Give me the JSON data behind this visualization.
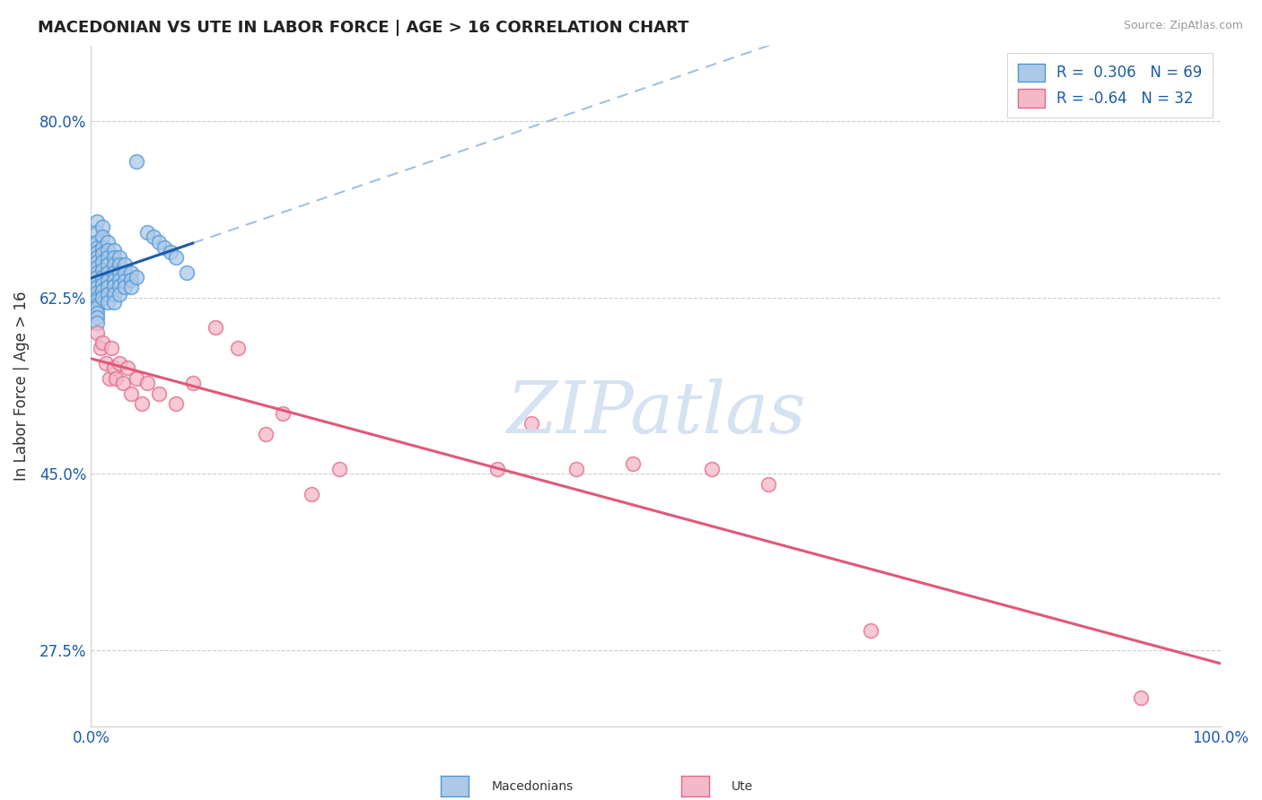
{
  "title": "MACEDONIAN VS UTE IN LABOR FORCE | AGE > 16 CORRELATION CHART",
  "source_text": "Source: ZipAtlas.com",
  "ylabel": "In Labor Force | Age > 16",
  "xlim": [
    0.0,
    1.0
  ],
  "ylim": [
    0.2,
    0.875
  ],
  "y_ticks": [
    0.275,
    0.45,
    0.625,
    0.8
  ],
  "y_tick_labels": [
    "27.5%",
    "45.0%",
    "62.5%",
    "80.0%"
  ],
  "macedonian_R": 0.306,
  "macedonian_N": 69,
  "ute_R": -0.64,
  "ute_N": 32,
  "macedonian_color": "#adc9e8",
  "macedonian_edge_color": "#4e96d4",
  "ute_color": "#f5b8c8",
  "ute_edge_color": "#e06888",
  "trend_macedonian_color": "#1a5ca8",
  "trend_ute_color": "#e05878",
  "trend_dashed_color": "#a0c0e0",
  "watermark_color": "#d0dff0",
  "legend_box_macedonian": "#adc9e8",
  "legend_box_ute": "#f5b8c8",
  "legend_text_color": "#1a5ca8",
  "title_color": "#222222",
  "grid_color": "#cccccc",
  "mac_x": [
    0.005,
    0.005,
    0.005,
    0.005,
    0.005,
    0.005,
    0.005,
    0.005,
    0.005,
    0.005,
    0.005,
    0.005,
    0.005,
    0.005,
    0.005,
    0.005,
    0.005,
    0.005,
    0.005,
    0.005,
    0.01,
    0.01,
    0.01,
    0.01,
    0.01,
    0.01,
    0.01,
    0.01,
    0.01,
    0.01,
    0.015,
    0.015,
    0.015,
    0.015,
    0.015,
    0.015,
    0.015,
    0.015,
    0.015,
    0.02,
    0.02,
    0.02,
    0.02,
    0.02,
    0.02,
    0.02,
    0.02,
    0.025,
    0.025,
    0.025,
    0.025,
    0.025,
    0.025,
    0.03,
    0.03,
    0.03,
    0.03,
    0.035,
    0.035,
    0.035,
    0.04,
    0.04,
    0.05,
    0.055,
    0.06,
    0.065,
    0.07,
    0.075,
    0.085
  ],
  "mac_y": [
    0.7,
    0.69,
    0.68,
    0.675,
    0.67,
    0.665,
    0.66,
    0.655,
    0.65,
    0.645,
    0.64,
    0.635,
    0.63,
    0.625,
    0.622,
    0.618,
    0.615,
    0.61,
    0.605,
    0.6,
    0.695,
    0.685,
    0.675,
    0.668,
    0.66,
    0.652,
    0.645,
    0.638,
    0.632,
    0.625,
    0.68,
    0.672,
    0.665,
    0.658,
    0.65,
    0.642,
    0.635,
    0.628,
    0.62,
    0.672,
    0.665,
    0.658,
    0.65,
    0.643,
    0.636,
    0.628,
    0.62,
    0.665,
    0.658,
    0.65,
    0.643,
    0.636,
    0.628,
    0.658,
    0.65,
    0.642,
    0.635,
    0.65,
    0.643,
    0.635,
    0.76,
    0.645,
    0.69,
    0.685,
    0.68,
    0.675,
    0.67,
    0.665,
    0.65
  ],
  "ute_x": [
    0.005,
    0.008,
    0.01,
    0.013,
    0.016,
    0.018,
    0.02,
    0.022,
    0.025,
    0.028,
    0.032,
    0.035,
    0.04,
    0.045,
    0.05,
    0.06,
    0.075,
    0.09,
    0.11,
    0.13,
    0.155,
    0.17,
    0.195,
    0.22,
    0.36,
    0.39,
    0.43,
    0.48,
    0.55,
    0.6,
    0.69,
    0.93
  ],
  "ute_y": [
    0.59,
    0.575,
    0.58,
    0.56,
    0.545,
    0.575,
    0.555,
    0.545,
    0.56,
    0.54,
    0.555,
    0.53,
    0.545,
    0.52,
    0.54,
    0.53,
    0.52,
    0.54,
    0.595,
    0.575,
    0.49,
    0.51,
    0.43,
    0.455,
    0.455,
    0.5,
    0.455,
    0.46,
    0.455,
    0.44,
    0.295,
    0.228
  ]
}
